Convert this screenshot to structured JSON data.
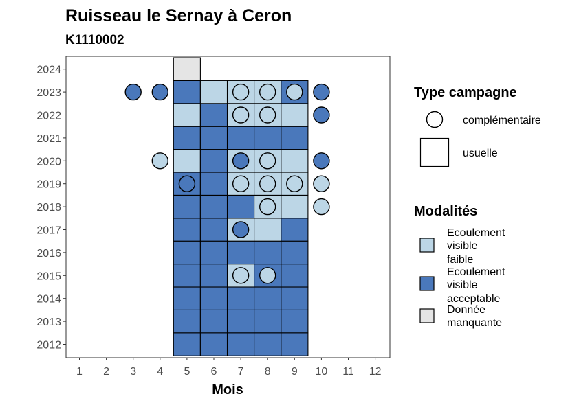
{
  "chart_data": {
    "type": "heatmap",
    "title": "Ruisseau le Sernay à Ceron",
    "subtitle": "K1110002",
    "xlabel": "Mois",
    "ylabel": "",
    "x_ticks": [
      1,
      2,
      3,
      4,
      5,
      6,
      7,
      8,
      9,
      10,
      11,
      12
    ],
    "y_ticks": [
      2012,
      2013,
      2014,
      2015,
      2016,
      2017,
      2018,
      2019,
      2020,
      2021,
      2022,
      2023,
      2024
    ],
    "grid": false,
    "legend_position": "right",
    "colors": {
      "faible": "#bcd6e6",
      "acceptable": "#4a78bb",
      "manquante": "#e5e5e5"
    },
    "type_legend": {
      "title": "Type campagne",
      "items": [
        {
          "key": "complementaire",
          "label": "complémentaire",
          "shape": "circle"
        },
        {
          "key": "usuelle",
          "label": "usuelle",
          "shape": "square"
        }
      ]
    },
    "mod_legend": {
      "title": "Modalités",
      "items": [
        {
          "key": "faible",
          "lines": [
            "Ecoulement",
            "visible",
            "faible"
          ]
        },
        {
          "key": "acceptable",
          "lines": [
            "Ecoulement",
            "visible",
            "acceptable"
          ]
        },
        {
          "key": "manquante",
          "lines": [
            "Donnée",
            "manquante"
          ]
        }
      ]
    },
    "usuelle": [
      {
        "year": 2012,
        "months": {
          "5": "acceptable",
          "6": "acceptable",
          "7": "acceptable",
          "8": "acceptable",
          "9": "acceptable"
        }
      },
      {
        "year": 2013,
        "months": {
          "5": "acceptable",
          "6": "acceptable",
          "7": "acceptable",
          "8": "acceptable",
          "9": "acceptable"
        }
      },
      {
        "year": 2014,
        "months": {
          "5": "acceptable",
          "6": "acceptable",
          "7": "acceptable",
          "8": "acceptable",
          "9": "acceptable"
        }
      },
      {
        "year": 2015,
        "months": {
          "5": "acceptable",
          "6": "acceptable",
          "7": "faible",
          "8": "acceptable",
          "9": "acceptable"
        }
      },
      {
        "year": 2016,
        "months": {
          "5": "acceptable",
          "6": "acceptable",
          "7": "acceptable",
          "8": "acceptable",
          "9": "acceptable"
        }
      },
      {
        "year": 2017,
        "months": {
          "5": "acceptable",
          "6": "acceptable",
          "7": "faible",
          "8": "faible",
          "9": "acceptable"
        }
      },
      {
        "year": 2018,
        "months": {
          "5": "acceptable",
          "6": "acceptable",
          "7": "acceptable",
          "8": "faible",
          "9": "faible"
        }
      },
      {
        "year": 2019,
        "months": {
          "5": "acceptable",
          "6": "acceptable",
          "7": "faible",
          "8": "faible",
          "9": "faible"
        }
      },
      {
        "year": 2020,
        "months": {
          "5": "faible",
          "6": "acceptable",
          "7": "faible",
          "8": "faible",
          "9": "faible"
        }
      },
      {
        "year": 2021,
        "months": {
          "5": "acceptable",
          "6": "acceptable",
          "7": "acceptable",
          "8": "acceptable",
          "9": "acceptable"
        }
      },
      {
        "year": 2022,
        "months": {
          "5": "faible",
          "6": "acceptable",
          "7": "faible",
          "8": "faible",
          "9": "faible"
        }
      },
      {
        "year": 2023,
        "months": {
          "5": "acceptable",
          "6": "faible",
          "7": "faible",
          "8": "faible",
          "9": "acceptable"
        }
      },
      {
        "year": 2024,
        "months": {
          "5": "manquante"
        }
      }
    ],
    "complementaire": [
      {
        "year": 2023,
        "month": 3,
        "value": "acceptable"
      },
      {
        "year": 2023,
        "month": 4,
        "value": "acceptable"
      },
      {
        "year": 2023,
        "month": 7,
        "value": "faible"
      },
      {
        "year": 2023,
        "month": 8,
        "value": "faible"
      },
      {
        "year": 2023,
        "month": 9,
        "value": "faible"
      },
      {
        "year": 2023,
        "month": 10,
        "value": "acceptable"
      },
      {
        "year": 2022,
        "month": 7,
        "value": "faible"
      },
      {
        "year": 2022,
        "month": 8,
        "value": "faible"
      },
      {
        "year": 2022,
        "month": 10,
        "value": "acceptable"
      },
      {
        "year": 2020,
        "month": 4,
        "value": "faible"
      },
      {
        "year": 2020,
        "month": 7,
        "value": "acceptable"
      },
      {
        "year": 2020,
        "month": 8,
        "value": "faible"
      },
      {
        "year": 2020,
        "month": 10,
        "value": "acceptable"
      },
      {
        "year": 2019,
        "month": 5,
        "value": "acceptable"
      },
      {
        "year": 2019,
        "month": 7,
        "value": "faible"
      },
      {
        "year": 2019,
        "month": 8,
        "value": "faible"
      },
      {
        "year": 2019,
        "month": 9,
        "value": "faible"
      },
      {
        "year": 2019,
        "month": 10,
        "value": "faible"
      },
      {
        "year": 2018,
        "month": 8,
        "value": "faible"
      },
      {
        "year": 2018,
        "month": 10,
        "value": "faible"
      },
      {
        "year": 2017,
        "month": 7,
        "value": "acceptable"
      },
      {
        "year": 2015,
        "month": 7,
        "value": "faible"
      },
      {
        "year": 2015,
        "month": 8,
        "value": "faible"
      }
    ]
  }
}
